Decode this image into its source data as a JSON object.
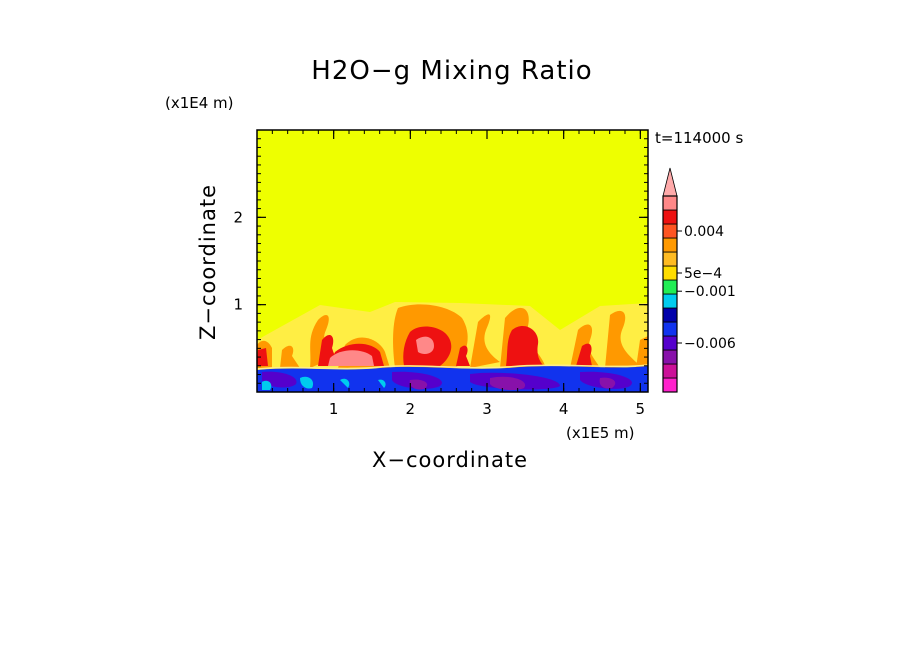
{
  "chart_data": {
    "type": "heatmap",
    "title": "H2O−g Mixing Ratio",
    "xlabel": "X−coordinate",
    "ylabel": "Z−coordinate",
    "x_unit": "(x1E5 m)",
    "y_unit": "(x1E4 m)",
    "time_label": "t=114000 s",
    "xlim": [
      0,
      5.1
    ],
    "ylim": [
      0,
      3.0
    ],
    "x_ticks": [
      1,
      2,
      3,
      4,
      5
    ],
    "y_ticks": [
      1,
      2
    ],
    "x_tick_labels": [
      "1",
      "2",
      "3",
      "4",
      "5"
    ],
    "y_tick_labels": [
      "1",
      "2"
    ],
    "colorbar": {
      "colors": [
        "#ff22cc",
        "#cc1199",
        "#8811aa",
        "#5500cc",
        "#1133ee",
        "#0000aa",
        "#00ccee",
        "#22ee55",
        "#ffdd00",
        "#ffbb22",
        "#ff9900",
        "#ff5522",
        "#ee1111",
        "#ff8888"
      ],
      "overflow_color": "#ffaaaa",
      "labels": [
        "0.004",
        "5e−4",
        "−0.001",
        "−0.006"
      ]
    },
    "background_color": "#eeff00",
    "regions": [
      {
        "name": "upper-layer",
        "color": "#eeff00",
        "x_range": [
          0,
          5.1
        ],
        "z_range": [
          0.95,
          3.0
        ]
      },
      {
        "name": "convective-plumes",
        "colors": [
          "#ffee44",
          "#ff9900",
          "#ee1111",
          "#ff8888"
        ],
        "x_range": [
          0,
          5.1
        ],
        "z_range": [
          0.3,
          1.0
        ]
      },
      {
        "name": "surface-layer",
        "colors": [
          "#1133ee",
          "#5500cc",
          "#8811aa",
          "#00ccee"
        ],
        "x_range": [
          0,
          5.1
        ],
        "z_range": [
          0,
          0.3
        ]
      }
    ]
  }
}
